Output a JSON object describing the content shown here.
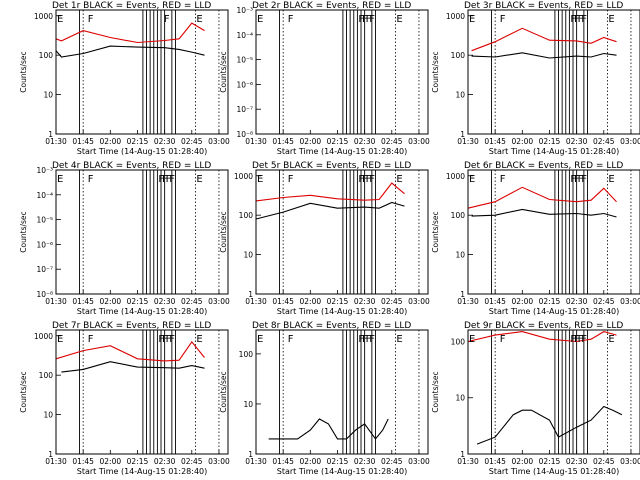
{
  "figure": {
    "series_colors": {
      "events": "#000000",
      "lld": "#dd0000"
    },
    "marker_labels": {
      "flare": "F",
      "eclipse": "E"
    }
  },
  "chart_data": [
    {
      "type": "line",
      "title": "Det 1r BLACK = Events, RED = LLD",
      "xlabel": "Start Time (14-Aug-15 01:28:40)",
      "ylabel": "Counts/sec",
      "x_tick_labels": [
        "01:30",
        "01:45",
        "02:00",
        "02:15",
        "02:30",
        "02:45",
        "03:00"
      ],
      "y_tick_labels": [
        "1",
        "10",
        "100",
        "1000"
      ],
      "yscale": "log",
      "ylim": [
        1,
        1400
      ],
      "xlim": [
        "01:30",
        "03:05"
      ],
      "series": [
        {
          "name": "BLACK = Events",
          "color": "#000000",
          "x": [
            "01:30",
            "01:33",
            "01:45",
            "02:00",
            "02:15",
            "02:30",
            "02:38",
            "02:45",
            "02:52"
          ],
          "y": [
            130,
            90,
            110,
            170,
            160,
            155,
            140,
            120,
            100
          ]
        },
        {
          "name": "RED = LLD",
          "color": "#dd0000",
          "x": [
            "01:30",
            "01:33",
            "01:45",
            "02:00",
            "02:15",
            "02:30",
            "02:38",
            "02:45",
            "02:52"
          ],
          "y": [
            260,
            230,
            420,
            280,
            210,
            235,
            260,
            650,
            420
          ]
        }
      ],
      "flare_times": [
        "01:47",
        "02:29"
      ],
      "eclipse_times": [
        "01:30",
        "02:47"
      ],
      "dotted_times": [
        "01:45",
        "02:47",
        "03:00"
      ],
      "vlines": [
        "01:43",
        "02:18",
        "02:20",
        "02:22",
        "02:24",
        "02:26",
        "02:28",
        "02:30",
        "02:34",
        "02:36"
      ]
    },
    {
      "type": "line",
      "title": "Det 2r BLACK = Events, RED = LLD",
      "xlabel": "Start Time (14-Aug-15 01:28:40)",
      "ylabel": "Counts/sec",
      "x_tick_labels": [
        "01:30",
        "01:45",
        "02:00",
        "02:15",
        "02:30",
        "02:45",
        "03:00"
      ],
      "y_tick_labels": [
        "10⁻⁸",
        "10⁻⁷",
        "10⁻⁶",
        "10⁻⁵",
        "10⁻⁴",
        "10⁻³"
      ],
      "yscale": "log",
      "series": [],
      "flare_times": [
        "01:47",
        "02:26",
        "02:28",
        "02:30",
        "02:32"
      ],
      "eclipse_times": [
        "01:30",
        "02:47"
      ],
      "dotted_times": [
        "01:45",
        "02:47",
        "03:00"
      ],
      "vlines": [
        "01:43",
        "02:18",
        "02:20",
        "02:22",
        "02:24",
        "02:26",
        "02:28",
        "02:30",
        "02:34",
        "02:36"
      ]
    },
    {
      "type": "line",
      "title": "Det 3r BLACK = Events, RED = LLD",
      "xlabel": "Start Time (14-Aug-15 01:28:40)",
      "ylabel": "Counts/sec",
      "x_tick_labels": [
        "01:30",
        "01:45",
        "02:00",
        "02:15",
        "02:30",
        "02:45",
        "03:00"
      ],
      "y_tick_labels": [
        "1",
        "10",
        "100",
        "1000"
      ],
      "yscale": "log",
      "ylim": [
        1,
        1400
      ],
      "series": [
        {
          "name": "BLACK = Events",
          "color": "#000000",
          "x": [
            "01:32",
            "01:45",
            "02:00",
            "02:15",
            "02:30",
            "02:38",
            "02:45",
            "02:52"
          ],
          "y": [
            95,
            90,
            115,
            85,
            95,
            90,
            110,
            100
          ]
        },
        {
          "name": "RED = LLD",
          "color": "#dd0000",
          "x": [
            "01:32",
            "01:45",
            "02:00",
            "02:15",
            "02:30",
            "02:38",
            "02:45",
            "02:52"
          ],
          "y": [
            130,
            220,
            480,
            240,
            230,
            200,
            280,
            220
          ]
        }
      ],
      "flare_times": [
        "01:47",
        "02:26",
        "02:28",
        "02:30",
        "02:32"
      ],
      "eclipse_times": [
        "01:30",
        "02:47"
      ],
      "dotted_times": [
        "01:45",
        "02:47",
        "03:00"
      ],
      "vlines": [
        "01:43",
        "02:18",
        "02:20",
        "02:22",
        "02:24",
        "02:26",
        "02:28",
        "02:30",
        "02:34",
        "02:36"
      ]
    },
    {
      "type": "line",
      "title": "Det 4r BLACK = Events, RED = LLD",
      "xlabel": "Start Time (14-Aug-15 01:28:40)",
      "ylabel": "Counts/sec",
      "x_tick_labels": [
        "01:30",
        "01:45",
        "02:00",
        "02:15",
        "02:30",
        "02:45",
        "03:00"
      ],
      "y_tick_labels": [
        "10⁻⁸",
        "10⁻⁷",
        "10⁻⁶",
        "10⁻⁵",
        "10⁻⁴",
        "10⁻³"
      ],
      "yscale": "log",
      "series": [],
      "flare_times": [
        "01:47",
        "02:26",
        "02:28",
        "02:30",
        "02:32"
      ],
      "eclipse_times": [
        "01:30",
        "02:47"
      ],
      "dotted_times": [
        "01:45",
        "02:47",
        "03:00"
      ],
      "vlines": [
        "01:43",
        "02:18",
        "02:20",
        "02:22",
        "02:24",
        "02:26",
        "02:28",
        "02:30",
        "02:34",
        "02:36"
      ]
    },
    {
      "type": "line",
      "title": "Det 5r BLACK = Events, RED = LLD",
      "xlabel": "Start Time (14-Aug-15 01:28:40)",
      "ylabel": "Counts/sec",
      "x_tick_labels": [
        "01:30",
        "01:45",
        "02:00",
        "02:15",
        "02:30",
        "02:45",
        "03:00"
      ],
      "y_tick_labels": [
        "1",
        "10",
        "100",
        "1000"
      ],
      "yscale": "log",
      "ylim": [
        1,
        1400
      ],
      "series": [
        {
          "name": "BLACK = Events",
          "color": "#000000",
          "x": [
            "01:30",
            "01:45",
            "02:00",
            "02:15",
            "02:30",
            "02:38",
            "02:45",
            "02:52"
          ],
          "y": [
            80,
            120,
            200,
            150,
            160,
            150,
            210,
            170
          ]
        },
        {
          "name": "RED = LLD",
          "color": "#dd0000",
          "x": [
            "01:30",
            "01:45",
            "02:00",
            "02:15",
            "02:30",
            "02:38",
            "02:45",
            "02:52"
          ],
          "y": [
            230,
            280,
            320,
            260,
            240,
            250,
            650,
            350
          ]
        }
      ],
      "flare_times": [
        "01:47",
        "02:26",
        "02:28",
        "02:30",
        "02:32"
      ],
      "eclipse_times": [
        "01:30",
        "02:47"
      ],
      "dotted_times": [
        "01:45",
        "02:47",
        "03:00"
      ],
      "vlines": [
        "01:43",
        "02:18",
        "02:20",
        "02:22",
        "02:24",
        "02:26",
        "02:28",
        "02:30",
        "02:34",
        "02:36"
      ]
    },
    {
      "type": "line",
      "title": "Det 6r BLACK = Events, RED = LLD",
      "xlabel": "Start Time (14-Aug-15 01:28:40)",
      "ylabel": "Counts/sec",
      "x_tick_labels": [
        "01:30",
        "01:45",
        "02:00",
        "02:15",
        "02:30",
        "02:45",
        "03:00"
      ],
      "y_tick_labels": [
        "1",
        "10",
        "100",
        "1000"
      ],
      "yscale": "log",
      "ylim": [
        1,
        1400
      ],
      "series": [
        {
          "name": "BLACK = Events",
          "color": "#000000",
          "x": [
            "01:32",
            "01:45",
            "02:00",
            "02:15",
            "02:30",
            "02:38",
            "02:45",
            "02:52"
          ],
          "y": [
            95,
            100,
            140,
            105,
            110,
            100,
            110,
            90
          ]
        },
        {
          "name": "RED = LLD",
          "color": "#dd0000",
          "x": [
            "01:30",
            "01:45",
            "02:00",
            "02:15",
            "02:30",
            "02:38",
            "02:45",
            "02:52"
          ],
          "y": [
            150,
            220,
            510,
            250,
            220,
            240,
            480,
            220
          ]
        }
      ],
      "flare_times": [
        "01:47",
        "02:26",
        "02:28",
        "02:30",
        "02:32"
      ],
      "eclipse_times": [
        "01:30",
        "02:47"
      ],
      "dotted_times": [
        "01:45",
        "02:47",
        "03:00"
      ],
      "vlines": [
        "01:43",
        "02:18",
        "02:20",
        "02:22",
        "02:24",
        "02:26",
        "02:28",
        "02:30",
        "02:34",
        "02:36"
      ]
    },
    {
      "type": "line",
      "title": "Det 7r BLACK = Events, RED = LLD",
      "xlabel": "Start Time (14-Aug-15 01:28:40)",
      "ylabel": "Counts/sec",
      "x_tick_labels": [
        "01:30",
        "01:45",
        "02:00",
        "02:15",
        "02:30",
        "02:45",
        "03:00"
      ],
      "y_tick_labels": [
        "1",
        "10",
        "100",
        "1000"
      ],
      "yscale": "log",
      "ylim": [
        1,
        1400
      ],
      "series": [
        {
          "name": "BLACK = Events",
          "color": "#000000",
          "x": [
            "01:33",
            "01:45",
            "02:00",
            "02:15",
            "02:30",
            "02:38",
            "02:45",
            "02:52"
          ],
          "y": [
            120,
            140,
            220,
            160,
            155,
            150,
            175,
            150
          ]
        },
        {
          "name": "RED = LLD",
          "color": "#dd0000",
          "x": [
            "01:30",
            "01:45",
            "02:00",
            "02:15",
            "02:30",
            "02:38",
            "02:45",
            "02:52"
          ],
          "y": [
            260,
            420,
            560,
            260,
            230,
            240,
            700,
            280
          ]
        }
      ],
      "flare_times": [
        "01:47",
        "02:26",
        "02:28",
        "02:30",
        "02:32"
      ],
      "eclipse_times": [
        "01:30",
        "02:47"
      ],
      "dotted_times": [
        "01:45",
        "02:47",
        "03:00"
      ],
      "vlines": [
        "01:43",
        "02:18",
        "02:20",
        "02:22",
        "02:24",
        "02:26",
        "02:28",
        "02:30",
        "02:34",
        "02:36"
      ]
    },
    {
      "type": "line",
      "title": "Det 8r BLACK = Events, RED = LLD",
      "xlabel": "Start Time (14-Aug-15 01:28:40)",
      "ylabel": "Counts/sec",
      "x_tick_labels": [
        "01:30",
        "01:45",
        "02:00",
        "02:15",
        "02:30",
        "02:45",
        "03:00"
      ],
      "y_tick_labels": [
        "1",
        "10",
        "100"
      ],
      "yscale": "log",
      "ylim": [
        1,
        300
      ],
      "series": [
        {
          "name": "BLACK = Events",
          "color": "#000000",
          "x": [
            "01:37",
            "01:45",
            "01:53",
            "02:00",
            "02:05",
            "02:10",
            "02:15",
            "02:20",
            "02:25",
            "02:30",
            "02:36",
            "02:40",
            "02:43"
          ],
          "y": [
            2,
            2,
            2,
            3,
            5,
            4,
            2,
            2,
            3,
            4,
            2,
            3,
            5
          ]
        }
      ],
      "flare_times": [
        "01:47",
        "02:26",
        "02:28",
        "02:30",
        "02:32"
      ],
      "eclipse_times": [
        "01:30",
        "02:47"
      ],
      "dotted_times": [
        "01:45",
        "02:47",
        "03:00"
      ],
      "vlines": [
        "01:43",
        "02:18",
        "02:20",
        "02:22",
        "02:24",
        "02:26",
        "02:28",
        "02:30",
        "02:34",
        "02:36"
      ]
    },
    {
      "type": "line",
      "title": "Det 9r BLACK = Events, RED = LLD",
      "xlabel": "Start Time (14-Aug-15 01:28:40)",
      "ylabel": "Counts/sec",
      "x_tick_labels": [
        "01:30",
        "01:45",
        "02:00",
        "02:15",
        "02:30",
        "02:45",
        "03:00"
      ],
      "y_tick_labels": [
        "1",
        "10",
        "100"
      ],
      "yscale": "log",
      "ylim": [
        1,
        160
      ],
      "series": [
        {
          "name": "BLACK = Events",
          "color": "#000000",
          "x": [
            "01:35",
            "01:45",
            "01:55",
            "02:00",
            "02:05",
            "02:15",
            "02:20",
            "02:30",
            "02:38",
            "02:45",
            "02:50",
            "02:55"
          ],
          "y": [
            1.5,
            2,
            5,
            6,
            6,
            4,
            2,
            3,
            4,
            7,
            6,
            5
          ]
        },
        {
          "name": "RED = LLD",
          "color": "#dd0000",
          "x": [
            "01:30",
            "01:45",
            "02:00",
            "02:15",
            "02:30",
            "02:38",
            "02:45",
            "02:52"
          ],
          "y": [
            100,
            130,
            150,
            110,
            100,
            110,
            150,
            130
          ]
        }
      ],
      "flare_times": [
        "01:47",
        "02:26",
        "02:28",
        "02:30",
        "02:32"
      ],
      "eclipse_times": [
        "01:30",
        "02:47"
      ],
      "dotted_times": [
        "01:45",
        "02:47",
        "03:00"
      ],
      "vlines": [
        "01:43",
        "02:18",
        "02:20",
        "02:22",
        "02:24",
        "02:26",
        "02:28",
        "02:30",
        "02:34",
        "02:36"
      ]
    }
  ]
}
